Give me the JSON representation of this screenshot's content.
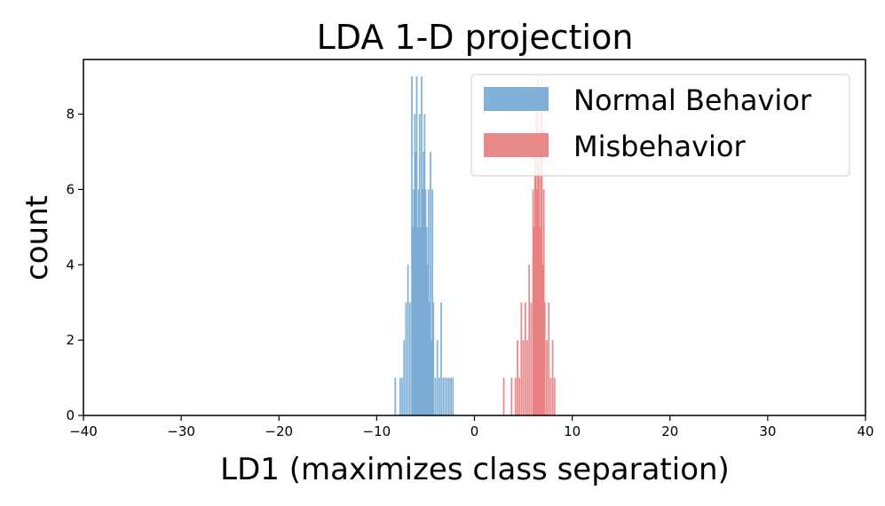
{
  "chart_data": {
    "type": "bar",
    "title": "LDA 1-D projection",
    "xlabel": "LD1 (maximizes class separation)",
    "ylabel": "count",
    "xlim": [
      -40,
      40
    ],
    "ylim": [
      0,
      9.45
    ],
    "xticks": [
      -40,
      -30,
      -20,
      -10,
      0,
      10,
      20,
      30,
      40
    ],
    "xtick_labels": [
      "−40",
      "−30",
      "−20",
      "−10",
      "0",
      "10",
      "20",
      "30",
      "40"
    ],
    "yticks": [
      0,
      2,
      4,
      6,
      8
    ],
    "ytick_labels": [
      "0",
      "2",
      "4",
      "6",
      "8"
    ],
    "bin_width": 0.16,
    "legend_position": "upper right",
    "series": [
      {
        "name": "Normal Behavior",
        "color": "#74a9d3",
        "x": [
          -8.1,
          -7.6,
          -7.4,
          -7.2,
          -7.0,
          -6.8,
          -6.6,
          -6.4,
          -6.3,
          -6.2,
          -6.1,
          -6.0,
          -5.9,
          -5.8,
          -5.7,
          -5.6,
          -5.5,
          -5.4,
          -5.3,
          -5.2,
          -5.1,
          -5.0,
          -4.9,
          -4.8,
          -4.7,
          -4.6,
          -4.5,
          -4.4,
          -4.3,
          -4.2,
          -4.0,
          -3.8,
          -3.6,
          -3.4,
          -3.2,
          -3.0,
          -2.8,
          -2.6,
          -2.4,
          -2.2
        ],
        "values": [
          1,
          1,
          1,
          2,
          3,
          4,
          3,
          9,
          5,
          6,
          8,
          7,
          9,
          5,
          6,
          8,
          5,
          9,
          6,
          7,
          8,
          6,
          5,
          4,
          6,
          3,
          7,
          2,
          6,
          3,
          1,
          2,
          1,
          3,
          1,
          1,
          1,
          1,
          1,
          1
        ]
      },
      {
        "name": "Misbehavior",
        "color": "#e77c7d",
        "x": [
          3.0,
          3.8,
          4.2,
          4.4,
          4.6,
          4.8,
          5.0,
          5.2,
          5.4,
          5.6,
          5.8,
          6.0,
          6.1,
          6.2,
          6.3,
          6.4,
          6.5,
          6.6,
          6.7,
          6.8,
          6.9,
          7.0,
          7.1,
          7.2,
          7.4,
          7.6,
          7.8,
          8.0,
          8.2
        ],
        "values": [
          1,
          1,
          1,
          2,
          1,
          3,
          2,
          3,
          2,
          4,
          3,
          6,
          5,
          7,
          8,
          6,
          9,
          7,
          5,
          8,
          9,
          4,
          6,
          3,
          2,
          3,
          1,
          2,
          1
        ]
      }
    ]
  }
}
